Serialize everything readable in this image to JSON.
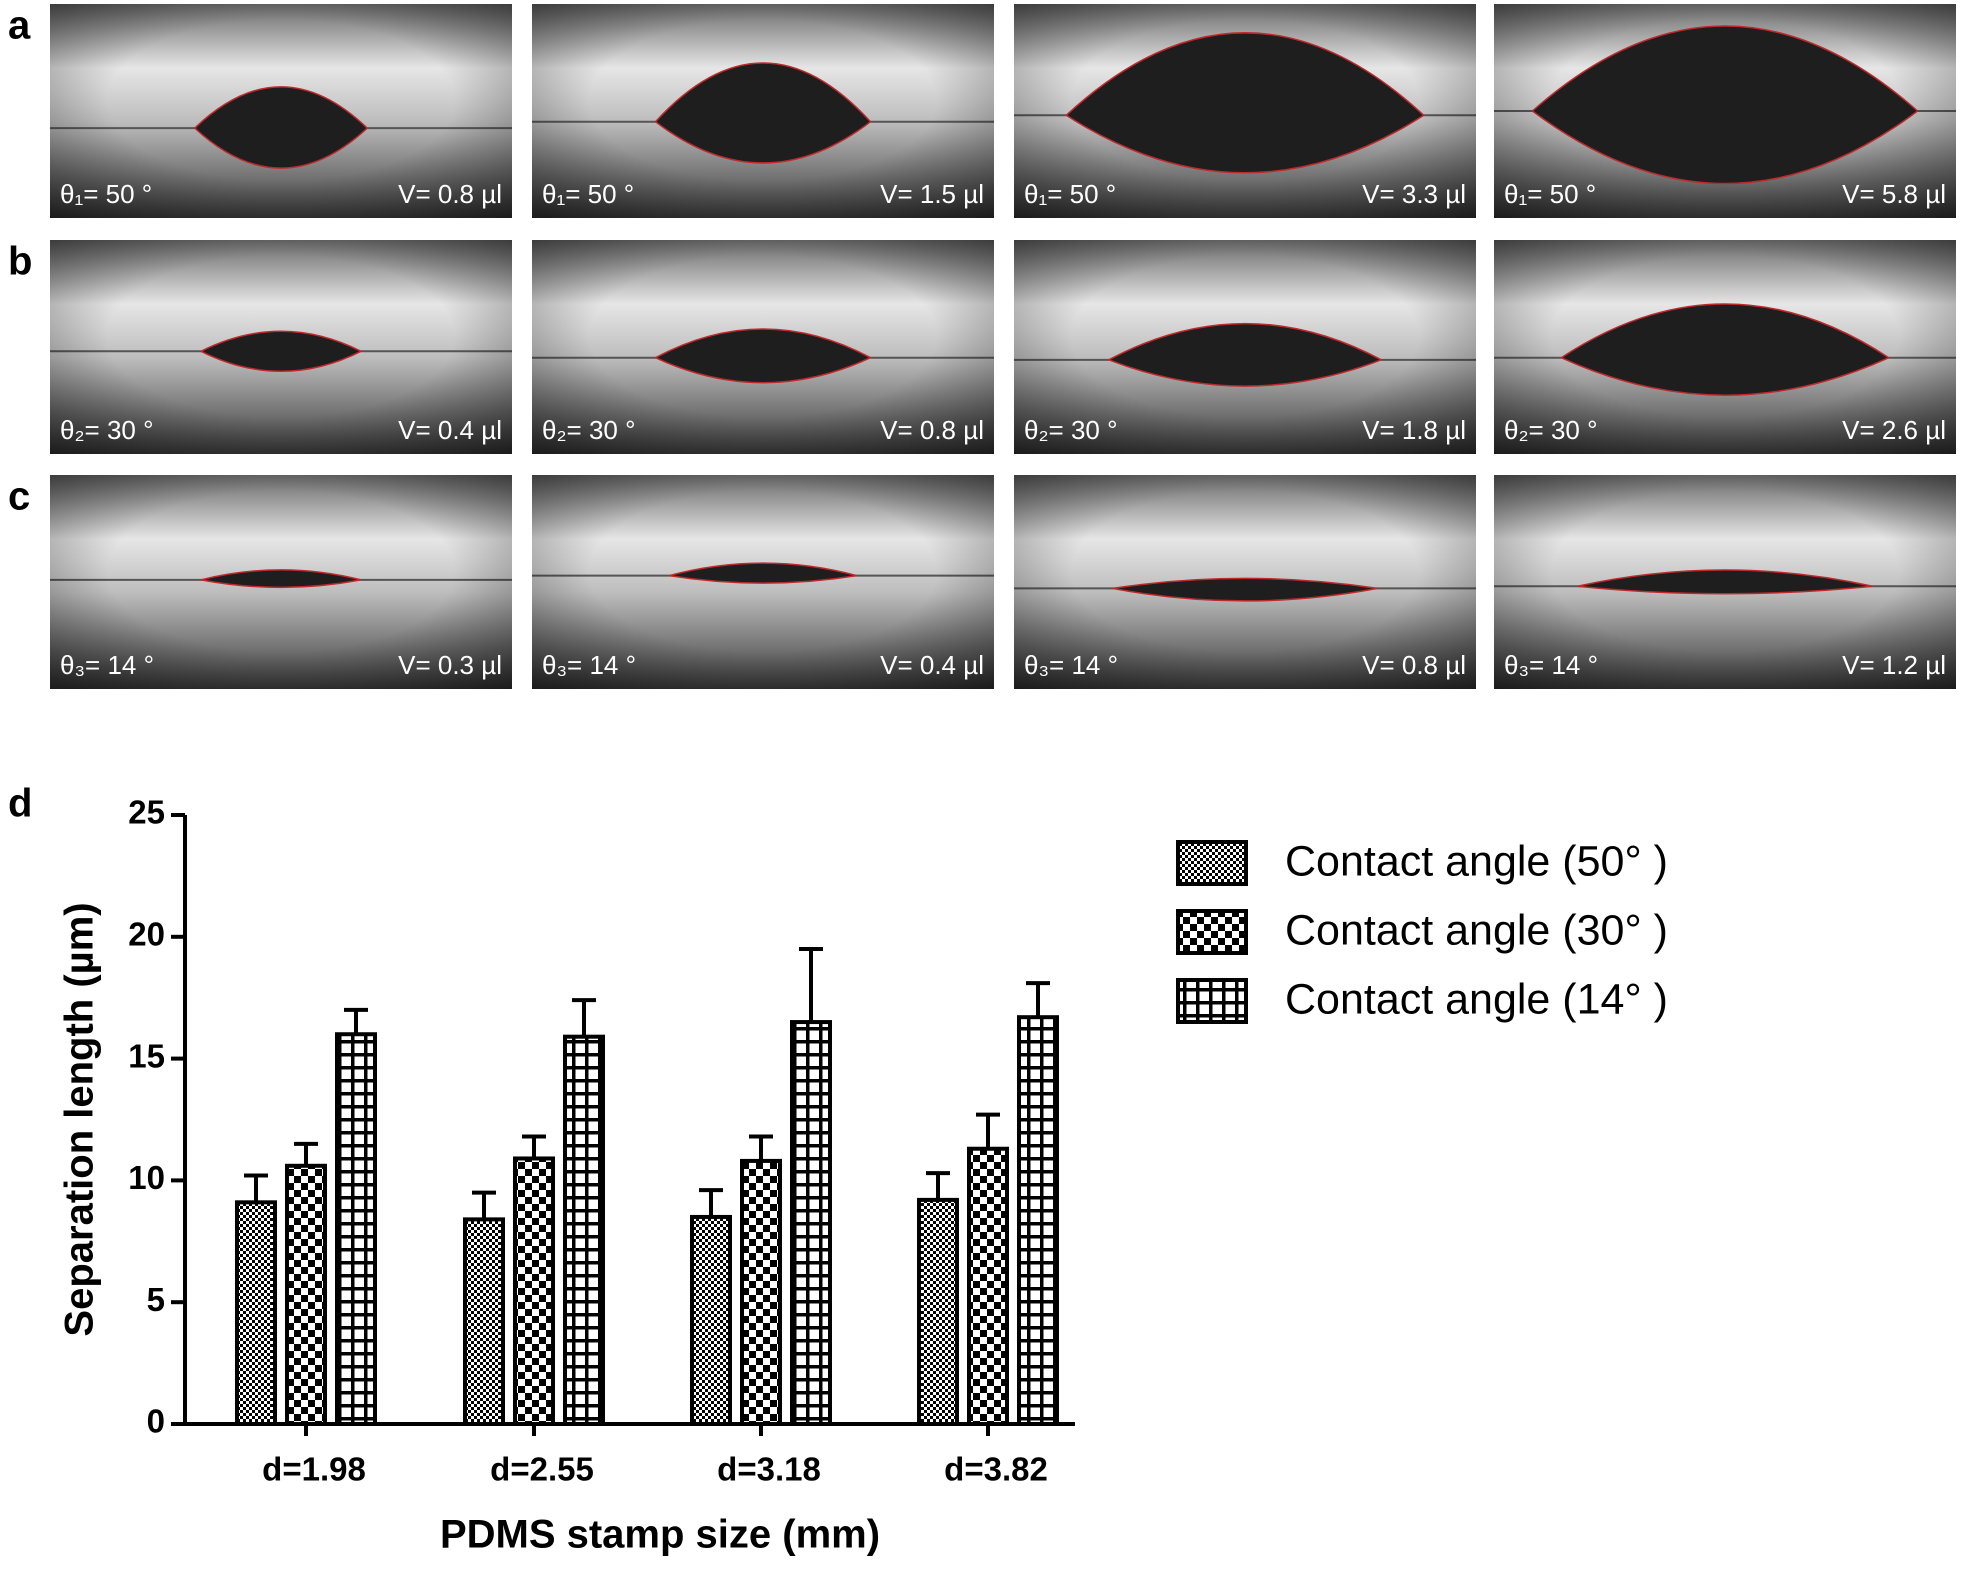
{
  "panels": {
    "rows": [
      {
        "letter": "a",
        "images": [
          {
            "angle": "θ₁= 50 °",
            "volume": "V= 0.8 µl"
          },
          {
            "angle": "θ₁= 50 °",
            "volume": "V= 1.5 µl"
          },
          {
            "angle": "θ₁= 50 °",
            "volume": "V= 3.3 µl"
          },
          {
            "angle": "θ₁= 50 °",
            "volume": "V= 5.8 µl"
          }
        ]
      },
      {
        "letter": "b",
        "images": [
          {
            "angle": "θ₂= 30 °",
            "volume": "V= 0.4 µl"
          },
          {
            "angle": "θ₂= 30 °",
            "volume": "V= 0.8 µl"
          },
          {
            "angle": "θ₂= 30 °",
            "volume": "V= 1.8 µl"
          },
          {
            "angle": "θ₂= 30 °",
            "volume": "V= 2.6 µl"
          }
        ]
      },
      {
        "letter": "c",
        "images": [
          {
            "angle": "θ₃= 14 °",
            "volume": "V= 0.3 µl"
          },
          {
            "angle": "θ₃= 14 °",
            "volume": "V= 0.4 µl"
          },
          {
            "angle": "θ₃= 14 °",
            "volume": "V= 0.8 µl"
          },
          {
            "angle": "θ₃= 14 °",
            "volume": "V= 1.2 µl"
          }
        ]
      }
    ]
  },
  "chart_data": {
    "type": "bar",
    "panel_label": "d",
    "x_label": "PDMS stamp size (mm)",
    "y_label": "Separation length (µm)",
    "categories": [
      "d=1.98",
      "d=2.55",
      "d=3.18",
      "d=3.82"
    ],
    "series": [
      {
        "name": "Contact angle (50° )",
        "color": "#000000",
        "values": [
          9.1,
          8.4,
          8.5,
          9.2
        ],
        "errors": [
          1.1,
          1.1,
          1.1,
          1.1
        ]
      },
      {
        "name": "Contact angle (30° )",
        "color": "#000000",
        "values": [
          10.6,
          10.9,
          10.8,
          11.3
        ],
        "errors": [
          0.9,
          0.9,
          1.0,
          1.4
        ]
      },
      {
        "name": "Contact angle (14° )",
        "color": "#000000",
        "values": [
          16.0,
          15.9,
          16.5,
          16.7
        ],
        "errors": [
          1.0,
          1.5,
          3.0,
          1.4
        ]
      }
    ],
    "ylim": [
      0,
      25
    ],
    "yticks": [
      0,
      5,
      10,
      15,
      20,
      25
    ],
    "legend": "upper right"
  }
}
